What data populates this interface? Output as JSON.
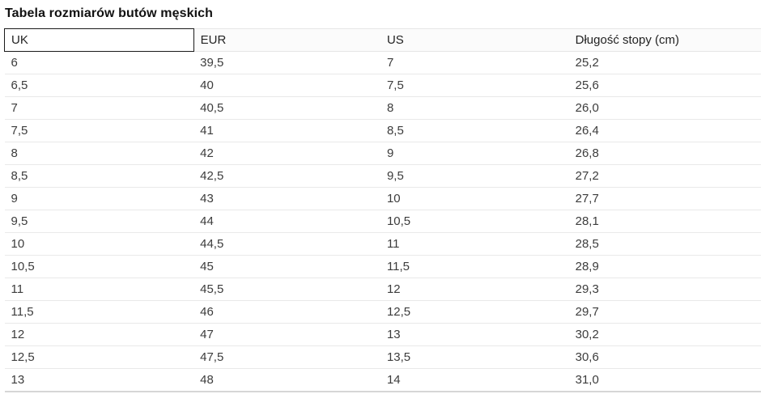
{
  "title": "Tabela rozmiarów butów męskich",
  "table": {
    "headers": [
      "UK",
      "EUR",
      "US",
      "Długość stopy (cm)"
    ],
    "rows": [
      [
        "6",
        "39,5",
        "7",
        "25,2"
      ],
      [
        "6,5",
        "40",
        "7,5",
        "25,6"
      ],
      [
        "7",
        "40,5",
        "8",
        "26,0"
      ],
      [
        "7,5",
        "41",
        "8,5",
        "26,4"
      ],
      [
        "8",
        "42",
        "9",
        "26,8"
      ],
      [
        "8,5",
        "42,5",
        "9,5",
        "27,2"
      ],
      [
        "9",
        "43",
        "10",
        "27,7"
      ],
      [
        "9,5",
        "44",
        "10,5",
        "28,1"
      ],
      [
        "10",
        "44,5",
        "11",
        "28,5"
      ],
      [
        "10,5",
        "45",
        "11,5",
        "28,9"
      ],
      [
        "11",
        "45,5",
        "12",
        "29,3"
      ],
      [
        "11,5",
        "46",
        "12,5",
        "29,7"
      ],
      [
        "12",
        "47",
        "13",
        "30,2"
      ],
      [
        "12,5",
        "47,5",
        "13,5",
        "30,6"
      ],
      [
        "13",
        "48",
        "14",
        "31,0"
      ]
    ]
  }
}
